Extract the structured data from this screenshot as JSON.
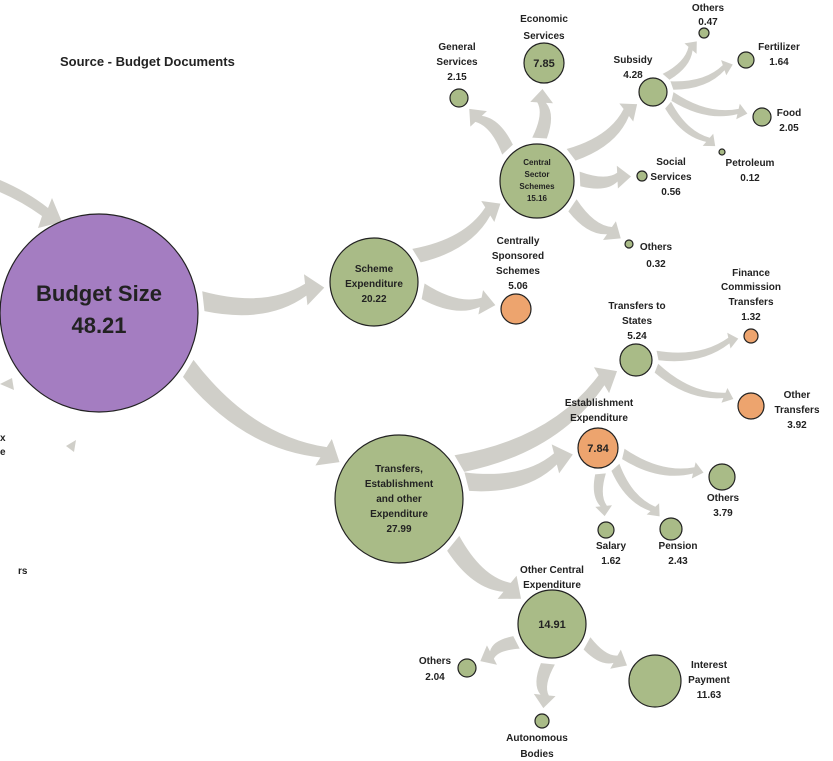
{
  "source": "Source - Budget Documents",
  "colors": {
    "green": "#a9bb87",
    "orange": "#eda46e",
    "purple": "#a47dc1",
    "stroke": "#222222",
    "arrow": "#d0cfc9"
  },
  "nodes": [
    {
      "id": "budget-size",
      "label": "Budget Size",
      "value": "48.21",
      "color": "purple"
    },
    {
      "id": "scheme-expenditure",
      "label": "Scheme Expenditure",
      "value": "20.22",
      "color": "green"
    },
    {
      "id": "transfers-establishment-other",
      "label": "Transfers, Establishment and other Expenditure",
      "value": "27.99",
      "color": "green"
    },
    {
      "id": "central-sector-schemes",
      "label": "Central Sector Schemes",
      "value": "15.16",
      "color": "green"
    },
    {
      "id": "centrally-sponsored-schemes",
      "label": "Centrally Sponsored Schemes",
      "value": "5.06",
      "color": "orange"
    },
    {
      "id": "general-services",
      "label": "General Services",
      "value": "2.15",
      "color": "green"
    },
    {
      "id": "economic-services",
      "label": "Economic Services",
      "value": "7.85",
      "color": "green"
    },
    {
      "id": "subsidy",
      "label": "Subsidy",
      "value": "4.28",
      "color": "green"
    },
    {
      "id": "subsidy-others",
      "label": "Others",
      "value": "0.47",
      "color": "green"
    },
    {
      "id": "fertilizer",
      "label": "Fertilizer",
      "value": "1.64",
      "color": "green"
    },
    {
      "id": "food",
      "label": "Food",
      "value": "2.05",
      "color": "green"
    },
    {
      "id": "petroleum",
      "label": "Petroleum",
      "value": "0.12",
      "color": "green"
    },
    {
      "id": "social-services",
      "label": "Social Services",
      "value": "0.56",
      "color": "green"
    },
    {
      "id": "css-others",
      "label": "Others",
      "value": "0.32",
      "color": "green"
    },
    {
      "id": "transfers-to-states",
      "label": "Transfers to States",
      "value": "5.24",
      "color": "green"
    },
    {
      "id": "finance-commission-transfers",
      "label": "Finance Commission Transfers",
      "value": "1.32",
      "color": "orange"
    },
    {
      "id": "other-transfers",
      "label": "Other Transfers",
      "value": "3.92",
      "color": "orange"
    },
    {
      "id": "establishment-expenditure",
      "label": "Establishment Expenditure",
      "value": "7.84",
      "color": "orange"
    },
    {
      "id": "establishment-others",
      "label": "Others",
      "value": "3.79",
      "color": "green"
    },
    {
      "id": "salary",
      "label": "Salary",
      "value": "1.62",
      "color": "green"
    },
    {
      "id": "pension",
      "label": "Pension",
      "value": "2.43",
      "color": "green"
    },
    {
      "id": "other-central-expenditure",
      "label": "Other Central Expenditure",
      "value": "14.91",
      "color": "green"
    },
    {
      "id": "interest-payment",
      "label": "Interest Payment",
      "value": "11.63",
      "color": "green"
    },
    {
      "id": "autonomous-bodies",
      "label": "Autonomous Bodies",
      "value": "",
      "color": "green"
    },
    {
      "id": "other-central-others",
      "label": "Others",
      "value": "2.04",
      "color": "green"
    }
  ],
  "edges": [
    [
      "budget-size",
      "scheme-expenditure"
    ],
    [
      "budget-size",
      "transfers-establishment-other"
    ],
    [
      "scheme-expenditure",
      "central-sector-schemes"
    ],
    [
      "scheme-expenditure",
      "centrally-sponsored-schemes"
    ],
    [
      "central-sector-schemes",
      "general-services"
    ],
    [
      "central-sector-schemes",
      "economic-services"
    ],
    [
      "central-sector-schemes",
      "subsidy"
    ],
    [
      "central-sector-schemes",
      "social-services"
    ],
    [
      "central-sector-schemes",
      "css-others"
    ],
    [
      "subsidy",
      "subsidy-others"
    ],
    [
      "subsidy",
      "fertilizer"
    ],
    [
      "subsidy",
      "food"
    ],
    [
      "subsidy",
      "petroleum"
    ],
    [
      "transfers-establishment-other",
      "transfers-to-states"
    ],
    [
      "transfers-establishment-other",
      "establishment-expenditure"
    ],
    [
      "transfers-establishment-other",
      "other-central-expenditure"
    ],
    [
      "transfers-to-states",
      "finance-commission-transfers"
    ],
    [
      "transfers-to-states",
      "other-transfers"
    ],
    [
      "establishment-expenditure",
      "establishment-others"
    ],
    [
      "establishment-expenditure",
      "salary"
    ],
    [
      "establishment-expenditure",
      "pension"
    ],
    [
      "other-central-expenditure",
      "interest-payment"
    ],
    [
      "other-central-expenditure",
      "autonomous-bodies"
    ],
    [
      "other-central-expenditure",
      "other-central-others"
    ]
  ],
  "fragments": [
    "x",
    "e",
    "rs"
  ]
}
